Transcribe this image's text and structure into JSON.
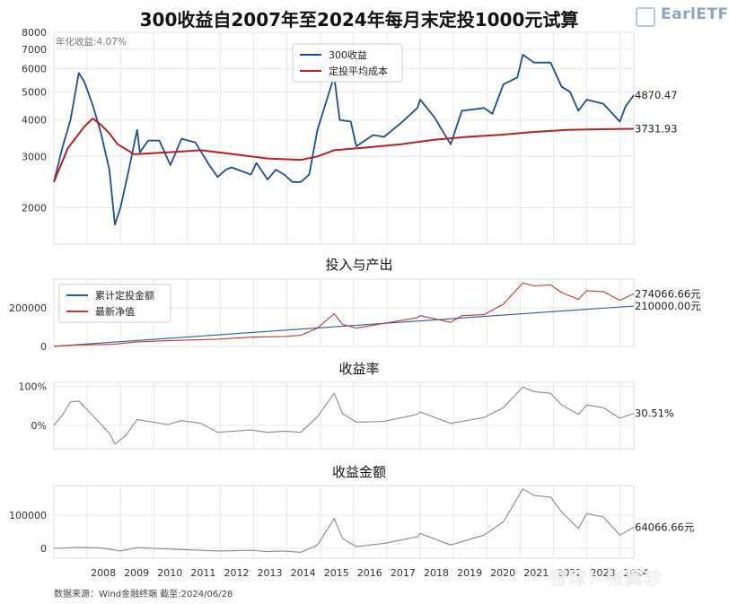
{
  "title": "300收益自2007年至2024年每月末定投1000元试算",
  "logo": {
    "text": "EarlETF"
  },
  "source": "数据来源：Wind金融终端 截至:2024/06/28",
  "watermark": "雪球：张翼轸",
  "colors": {
    "index": "#1f4e8c",
    "cost": "#b22222",
    "invest": "#2a5a9e",
    "value": "#c0392b",
    "rate": "#888888",
    "grid": "#e6e6e6"
  },
  "chart_data": [
    {
      "type": "line",
      "annotation": "年化收益:4.07%",
      "y_scale": "log",
      "ylim": [
        1500,
        8000
      ],
      "yticks": [
        2000,
        3000,
        4000,
        5000,
        6000,
        7000,
        8000
      ],
      "x_range": [
        "2007-01",
        "2024-06"
      ],
      "legend_position": "top-center",
      "series": [
        {
          "name": "300收益",
          "end_label": "4870.47",
          "points": [
            [
              "2007-01",
              2450
            ],
            [
              "2007-04",
              3200
            ],
            [
              "2007-07",
              4000
            ],
            [
              "2007-10",
              5800
            ],
            [
              "2007-12",
              5400
            ],
            [
              "2008-03",
              4500
            ],
            [
              "2008-06",
              3600
            ],
            [
              "2008-09",
              2700
            ],
            [
              "2008-11",
              1750
            ],
            [
              "2009-01",
              2000
            ],
            [
              "2009-04",
              2700
            ],
            [
              "2009-07",
              3700
            ],
            [
              "2009-08",
              3100
            ],
            [
              "2009-11",
              3400
            ],
            [
              "2010-03",
              3400
            ],
            [
              "2010-07",
              2800
            ],
            [
              "2010-11",
              3450
            ],
            [
              "2011-04",
              3350
            ],
            [
              "2011-09",
              2800
            ],
            [
              "2011-12",
              2550
            ],
            [
              "2012-03",
              2700
            ],
            [
              "2012-05",
              2750
            ],
            [
              "2012-12",
              2600
            ],
            [
              "2013-02",
              2850
            ],
            [
              "2013-06",
              2500
            ],
            [
              "2013-09",
              2700
            ],
            [
              "2013-12",
              2600
            ],
            [
              "2014-03",
              2450
            ],
            [
              "2014-06",
              2450
            ],
            [
              "2014-09",
              2600
            ],
            [
              "2014-12",
              3700
            ],
            [
              "2015-06",
              5650
            ],
            [
              "2015-08",
              4000
            ],
            [
              "2015-12",
              3950
            ],
            [
              "2016-02",
              3250
            ],
            [
              "2016-08",
              3550
            ],
            [
              "2016-12",
              3500
            ],
            [
              "2017-06",
              3900
            ],
            [
              "2017-12",
              4400
            ],
            [
              "2018-01",
              4700
            ],
            [
              "2018-06",
              4100
            ],
            [
              "2018-12",
              3300
            ],
            [
              "2019-04",
              4300
            ],
            [
              "2019-12",
              4400
            ],
            [
              "2020-03",
              4200
            ],
            [
              "2020-07",
              5300
            ],
            [
              "2020-12",
              5600
            ],
            [
              "2021-02",
              6700
            ],
            [
              "2021-06",
              6300
            ],
            [
              "2021-12",
              6300
            ],
            [
              "2022-04",
              5200
            ],
            [
              "2022-07",
              5000
            ],
            [
              "2022-10",
              4300
            ],
            [
              "2023-01",
              4700
            ],
            [
              "2023-07",
              4550
            ],
            [
              "2024-01",
              3950
            ],
            [
              "2024-03",
              4450
            ],
            [
              "2024-06",
              4870.47
            ]
          ]
        },
        {
          "name": "定投平均成本",
          "end_label": "3731.93",
          "points": [
            [
              "2007-01",
              2450
            ],
            [
              "2007-06",
              3200
            ],
            [
              "2007-12",
              3800
            ],
            [
              "2008-03",
              4050
            ],
            [
              "2008-06",
              3850
            ],
            [
              "2008-09",
              3600
            ],
            [
              "2008-12",
              3300
            ],
            [
              "2009-06",
              3050
            ],
            [
              "2010-06",
              3100
            ],
            [
              "2011-06",
              3150
            ],
            [
              "2012-06",
              3050
            ],
            [
              "2013-06",
              2950
            ],
            [
              "2014-06",
              2920
            ],
            [
              "2014-12",
              3000
            ],
            [
              "2015-06",
              3150
            ],
            [
              "2016-06",
              3220
            ],
            [
              "2017-06",
              3300
            ],
            [
              "2018-06",
              3420
            ],
            [
              "2019-06",
              3500
            ],
            [
              "2020-06",
              3560
            ],
            [
              "2021-06",
              3640
            ],
            [
              "2022-06",
              3700
            ],
            [
              "2023-06",
              3720
            ],
            [
              "2024-06",
              3731.93
            ]
          ]
        }
      ]
    },
    {
      "type": "line",
      "title": "投入与产出",
      "ylim": [
        0,
        350000
      ],
      "yticks": [
        0,
        200000
      ],
      "legend_position": "top-left",
      "series": [
        {
          "name": "累计定投金额",
          "end_label": "210000.00元",
          "points": [
            [
              "2007-01",
              1000
            ],
            [
              "2024-06",
              210000
            ]
          ]
        },
        {
          "name": "最新净值",
          "end_label": "274066.66元",
          "points": [
            [
              "2007-01",
              1000
            ],
            [
              "2007-10",
              8000
            ],
            [
              "2008-06",
              10000
            ],
            [
              "2008-11",
              12000
            ],
            [
              "2009-07",
              24000
            ],
            [
              "2010-06",
              30000
            ],
            [
              "2011-12",
              38000
            ],
            [
              "2012-12",
              48000
            ],
            [
              "2013-12",
              52000
            ],
            [
              "2014-06",
              58000
            ],
            [
              "2014-12",
              95000
            ],
            [
              "2015-06",
              170000
            ],
            [
              "2015-09",
              115000
            ],
            [
              "2016-02",
              95000
            ],
            [
              "2016-12",
              120000
            ],
            [
              "2017-12",
              150000
            ],
            [
              "2018-01",
              160000
            ],
            [
              "2018-12",
              125000
            ],
            [
              "2019-04",
              160000
            ],
            [
              "2019-12",
              165000
            ],
            [
              "2020-07",
              220000
            ],
            [
              "2021-02",
              330000
            ],
            [
              "2021-06",
              315000
            ],
            [
              "2021-12",
              320000
            ],
            [
              "2022-04",
              280000
            ],
            [
              "2022-10",
              245000
            ],
            [
              "2023-01",
              290000
            ],
            [
              "2023-07",
              285000
            ],
            [
              "2024-01",
              240000
            ],
            [
              "2024-06",
              274066.66
            ]
          ]
        }
      ]
    },
    {
      "type": "line",
      "title": "收益率",
      "ylim": [
        -0.6,
        1.1
      ],
      "yticks": [
        0,
        1.0
      ],
      "ytick_labels": [
        "0%",
        "100%"
      ],
      "series": [
        {
          "name": "收益率",
          "end_label": "30.51%",
          "points": [
            [
              "2007-01",
              0
            ],
            [
              "2007-04",
              0.25
            ],
            [
              "2007-07",
              0.6
            ],
            [
              "2007-10",
              0.62
            ],
            [
              "2008-03",
              0.25
            ],
            [
              "2008-09",
              -0.2
            ],
            [
              "2008-11",
              -0.48
            ],
            [
              "2009-03",
              -0.25
            ],
            [
              "2009-07",
              0.15
            ],
            [
              "2009-11",
              0.1
            ],
            [
              "2010-06",
              0.02
            ],
            [
              "2010-11",
              0.12
            ],
            [
              "2011-06",
              0.05
            ],
            [
              "2011-12",
              -0.18
            ],
            [
              "2012-12",
              -0.12
            ],
            [
              "2013-06",
              -0.18
            ],
            [
              "2013-12",
              -0.15
            ],
            [
              "2014-06",
              -0.18
            ],
            [
              "2014-12",
              0.22
            ],
            [
              "2015-06",
              0.82
            ],
            [
              "2015-09",
              0.3
            ],
            [
              "2016-02",
              0.08
            ],
            [
              "2016-12",
              0.1
            ],
            [
              "2017-12",
              0.28
            ],
            [
              "2018-01",
              0.34
            ],
            [
              "2018-12",
              0.05
            ],
            [
              "2019-12",
              0.2
            ],
            [
              "2020-07",
              0.45
            ],
            [
              "2021-02",
              0.98
            ],
            [
              "2021-06",
              0.86
            ],
            [
              "2021-12",
              0.82
            ],
            [
              "2022-04",
              0.52
            ],
            [
              "2022-10",
              0.28
            ],
            [
              "2023-01",
              0.52
            ],
            [
              "2023-07",
              0.45
            ],
            [
              "2024-01",
              0.18
            ],
            [
              "2024-06",
              0.3051
            ]
          ]
        }
      ]
    },
    {
      "type": "line",
      "title": "收益金额",
      "ylim": [
        -30000,
        190000
      ],
      "yticks": [
        0,
        100000
      ],
      "series": [
        {
          "name": "收益金额",
          "end_label": "64066.66元",
          "points": [
            [
              "2007-01",
              0
            ],
            [
              "2007-10",
              3000
            ],
            [
              "2008-06",
              1000
            ],
            [
              "2009-01",
              -8000
            ],
            [
              "2009-07",
              2000
            ],
            [
              "2010-06",
              -2000
            ],
            [
              "2011-12",
              -8000
            ],
            [
              "2012-12",
              -6000
            ],
            [
              "2013-06",
              -10000
            ],
            [
              "2013-12",
              -8000
            ],
            [
              "2014-06",
              -12000
            ],
            [
              "2014-12",
              10000
            ],
            [
              "2015-06",
              90000
            ],
            [
              "2015-09",
              30000
            ],
            [
              "2016-02",
              5000
            ],
            [
              "2016-12",
              15000
            ],
            [
              "2017-12",
              35000
            ],
            [
              "2018-01",
              45000
            ],
            [
              "2018-12",
              10000
            ],
            [
              "2019-12",
              40000
            ],
            [
              "2020-07",
              80000
            ],
            [
              "2021-02",
              180000
            ],
            [
              "2021-06",
              160000
            ],
            [
              "2021-12",
              155000
            ],
            [
              "2022-04",
              110000
            ],
            [
              "2022-10",
              60000
            ],
            [
              "2023-01",
              105000
            ],
            [
              "2023-07",
              95000
            ],
            [
              "2024-01",
              40000
            ],
            [
              "2024-06",
              64066.66
            ]
          ]
        }
      ]
    }
  ],
  "x_axis": {
    "tick_labels": [
      "2008",
      "2009",
      "2010",
      "2011",
      "2012",
      "2013",
      "2014",
      "2015",
      "2016",
      "2017",
      "2018",
      "2019",
      "2020",
      "2021",
      "2022",
      "2023",
      "2024"
    ]
  }
}
